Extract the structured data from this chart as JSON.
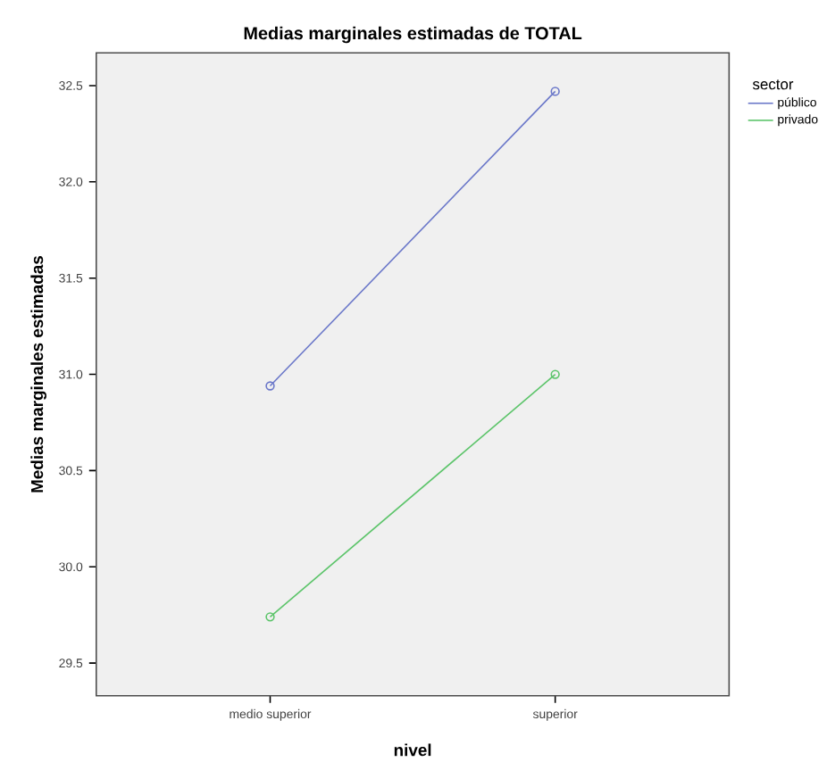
{
  "chart_data": {
    "type": "line",
    "title": "Medias marginales estimadas de TOTAL",
    "xlabel": "nivel",
    "ylabel": "Medias marginales estimadas",
    "legend_title": "sector",
    "categories": [
      "medio superior",
      "superior"
    ],
    "series": [
      {
        "name": "público",
        "color": "#6a77c9",
        "values": [
          30.94,
          32.47
        ]
      },
      {
        "name": "privado",
        "color": "#5cc46a",
        "values": [
          29.74,
          31.0
        ]
      }
    ],
    "ylim": [
      29.33,
      32.67
    ],
    "yticks": [
      {
        "value": 29.5,
        "label": "29.5"
      },
      {
        "value": 30.0,
        "label": "30.0"
      },
      {
        "value": 30.5,
        "label": "30.5"
      },
      {
        "value": 31.0,
        "label": "31.0"
      },
      {
        "value": 31.5,
        "label": "31.5"
      },
      {
        "value": 32.0,
        "label": "32.0"
      },
      {
        "value": 32.5,
        "label": "32.5"
      }
    ],
    "marker": "circle",
    "line_style": "solid",
    "legend": "right",
    "grid": false
  }
}
